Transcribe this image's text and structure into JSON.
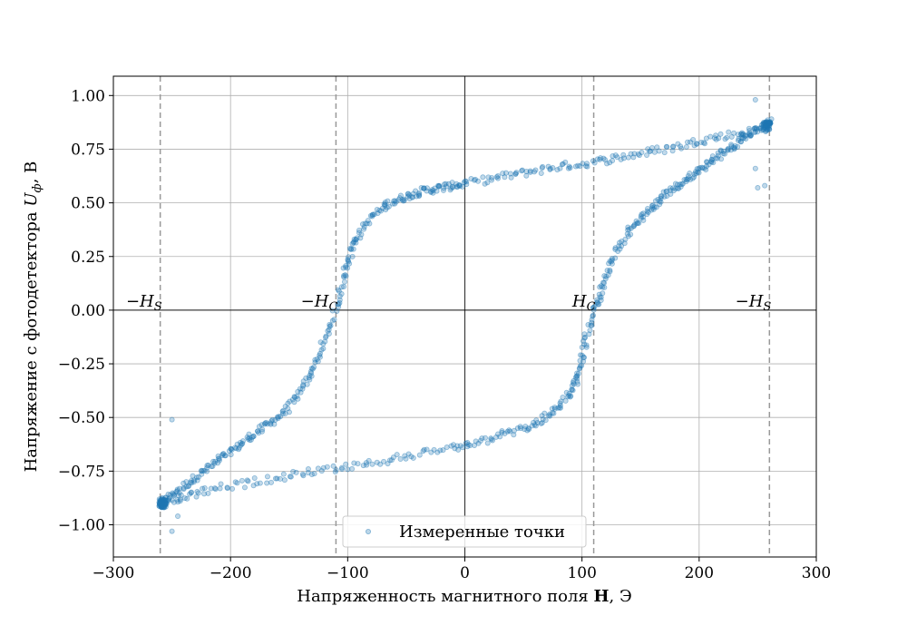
{
  "chart_data": {
    "type": "scatter",
    "xlabel_prefix": "Напряженность магнитного поля ",
    "xlabel_bold": "H",
    "xlabel_suffix": ", Э",
    "ylabel_prefix": "Напряжение с фотодетектора ",
    "ylabel_symbol": "U",
    "ylabel_sub": "ф",
    "ylabel_suffix": ", В",
    "xlim": [
      -300,
      300
    ],
    "ylim": [
      -1.15,
      1.09
    ],
    "xticks": [
      -300,
      -200,
      -100,
      0,
      100,
      200,
      300
    ],
    "xtick_labels": [
      "−300",
      "−200",
      "−100",
      "0",
      "100",
      "200",
      "300"
    ],
    "yticks": [
      -1.0,
      -0.75,
      -0.5,
      -0.25,
      0.0,
      0.25,
      0.5,
      0.75,
      1.0
    ],
    "ytick_labels": [
      "−1.00",
      "−0.75",
      "−0.50",
      "−0.25",
      "0.00",
      "0.25",
      "0.50",
      "0.75",
      "1.00"
    ],
    "grid": true,
    "legend_position": "lower-center",
    "point_color": "#1f77b4",
    "series": [
      {
        "name": "Измеренные точки",
        "upper_branch": [
          [
            -260,
            -0.9
          ],
          [
            -250,
            -0.86
          ],
          [
            -240,
            -0.82
          ],
          [
            -230,
            -0.78
          ],
          [
            -220,
            -0.74
          ],
          [
            -210,
            -0.7
          ],
          [
            -200,
            -0.66
          ],
          [
            -190,
            -0.62
          ],
          [
            -180,
            -0.58
          ],
          [
            -170,
            -0.54
          ],
          [
            -160,
            -0.5
          ],
          [
            -150,
            -0.45
          ],
          [
            -140,
            -0.38
          ],
          [
            -132,
            -0.3
          ],
          [
            -125,
            -0.22
          ],
          [
            -118,
            -0.12
          ],
          [
            -110,
            0.0
          ],
          [
            -105,
            0.12
          ],
          [
            -100,
            0.22
          ],
          [
            -95,
            0.3
          ],
          [
            -90,
            0.36
          ],
          [
            -80,
            0.43
          ],
          [
            -70,
            0.48
          ],
          [
            -60,
            0.51
          ],
          [
            -50,
            0.53
          ],
          [
            -40,
            0.55
          ],
          [
            -30,
            0.56
          ],
          [
            -20,
            0.57
          ],
          [
            -10,
            0.58
          ],
          [
            0,
            0.59
          ],
          [
            20,
            0.61
          ],
          [
            40,
            0.63
          ],
          [
            60,
            0.65
          ],
          [
            80,
            0.67
          ],
          [
            100,
            0.68
          ],
          [
            120,
            0.7
          ],
          [
            140,
            0.72
          ],
          [
            160,
            0.74
          ],
          [
            180,
            0.76
          ],
          [
            200,
            0.79
          ],
          [
            220,
            0.81
          ],
          [
            240,
            0.83
          ],
          [
            260,
            0.85
          ]
        ],
        "lower_branch": [
          [
            260,
            0.88
          ],
          [
            250,
            0.84
          ],
          [
            240,
            0.81
          ],
          [
            230,
            0.77
          ],
          [
            220,
            0.73
          ],
          [
            210,
            0.69
          ],
          [
            200,
            0.65
          ],
          [
            190,
            0.61
          ],
          [
            180,
            0.57
          ],
          [
            170,
            0.53
          ],
          [
            160,
            0.48
          ],
          [
            150,
            0.43
          ],
          [
            140,
            0.37
          ],
          [
            130,
            0.28
          ],
          [
            122,
            0.18
          ],
          [
            116,
            0.08
          ],
          [
            110,
            0.0
          ],
          [
            104,
            -0.12
          ],
          [
            100,
            -0.24
          ],
          [
            95,
            -0.33
          ],
          [
            88,
            -0.4
          ],
          [
            78,
            -0.46
          ],
          [
            65,
            -0.51
          ],
          [
            50,
            -0.55
          ],
          [
            30,
            -0.58
          ],
          [
            10,
            -0.62
          ],
          [
            -10,
            -0.64
          ],
          [
            -40,
            -0.67
          ],
          [
            -70,
            -0.7
          ],
          [
            -100,
            -0.73
          ],
          [
            -130,
            -0.75
          ],
          [
            -160,
            -0.78
          ],
          [
            -190,
            -0.81
          ],
          [
            -220,
            -0.84
          ],
          [
            -240,
            -0.87
          ],
          [
            -255,
            -0.89
          ],
          [
            -260,
            -0.91
          ]
        ],
        "outliers": [
          [
            -250,
            -0.51
          ],
          [
            -250,
            -1.03
          ],
          [
            -245,
            -0.96
          ],
          [
            248,
            0.98
          ],
          [
            250,
            0.57
          ],
          [
            256,
            0.58
          ],
          [
            248,
            0.66
          ]
        ]
      }
    ],
    "vlines": [
      {
        "x": -260,
        "label": "−H",
        "sub": "S"
      },
      {
        "x": -110,
        "label": "−H",
        "sub": "C"
      },
      {
        "x": 110,
        "label": "H",
        "sub": "C"
      },
      {
        "x": 260,
        "label": "−H",
        "sub": "S"
      }
    ]
  }
}
